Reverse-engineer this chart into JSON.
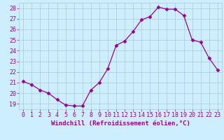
{
  "x": [
    0,
    1,
    2,
    3,
    4,
    5,
    6,
    7,
    8,
    9,
    10,
    11,
    12,
    13,
    14,
    15,
    16,
    17,
    18,
    19,
    20,
    21,
    22,
    23
  ],
  "y": [
    21.1,
    20.8,
    20.3,
    20.0,
    19.4,
    18.9,
    18.8,
    18.8,
    20.3,
    21.0,
    22.3,
    24.5,
    24.9,
    25.8,
    26.9,
    27.2,
    28.1,
    27.9,
    27.9,
    27.3,
    25.0,
    24.8,
    23.3,
    22.2
  ],
  "line_color": "#990099",
  "marker": "D",
  "marker_size": 2.5,
  "bg_color": "#cceeff",
  "grid_color": "#aacccc",
  "xlabel": "Windchill (Refroidissement éolien,°C)",
  "yticks": [
    19,
    20,
    21,
    22,
    23,
    24,
    25,
    26,
    27,
    28
  ],
  "xticks": [
    0,
    1,
    2,
    3,
    4,
    5,
    6,
    7,
    8,
    9,
    10,
    11,
    12,
    13,
    14,
    15,
    16,
    17,
    18,
    19,
    20,
    21,
    22,
    23
  ],
  "xlim": [
    -0.5,
    23.5
  ],
  "ylim": [
    18.5,
    28.5
  ],
  "label_fontsize": 6.5,
  "tick_fontsize": 6.0,
  "text_color": "#990099"
}
